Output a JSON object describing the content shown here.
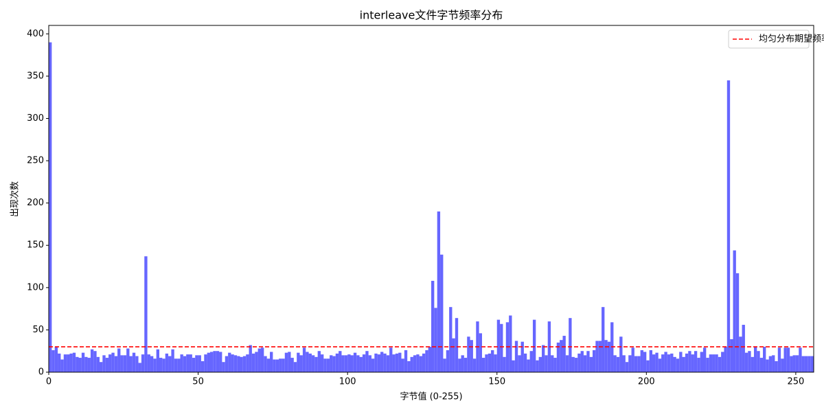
{
  "chart_data": {
    "type": "histogram",
    "title": "interleave文件字节频率分布",
    "xlabel": "字节值 (0-255)",
    "ylabel": "出现次数",
    "color": "#6666ff",
    "xlim": [
      0,
      256
    ],
    "ylim": [
      0,
      410
    ],
    "xticks": [
      0,
      50,
      100,
      150,
      200,
      250
    ],
    "yticks": [
      0,
      50,
      100,
      150,
      200,
      250,
      300,
      350,
      400
    ],
    "legend": "upper right",
    "reference_line": {
      "name": "均匀分布期望频率",
      "value": 30,
      "color": "#ff0000",
      "style": "dashed"
    },
    "bins": [
      0,
      1,
      2,
      3,
      4,
      5,
      6,
      7,
      8,
      9,
      10,
      11,
      12,
      13,
      14,
      15,
      16,
      17,
      18,
      19,
      20,
      21,
      22,
      23,
      24,
      25,
      26,
      27,
      28,
      29,
      30,
      31,
      32,
      33,
      34,
      35,
      36,
      37,
      38,
      39,
      40,
      41,
      42,
      43,
      44,
      45,
      46,
      47,
      48,
      49,
      50,
      51,
      52,
      53,
      54,
      55,
      56,
      57,
      58,
      59,
      60,
      61,
      62,
      63,
      64,
      65,
      66,
      67,
      68,
      69,
      70,
      71,
      72,
      73,
      74,
      75,
      76,
      77,
      78,
      79,
      80,
      81,
      82,
      83,
      84,
      85,
      86,
      87,
      88,
      89,
      90,
      91,
      92,
      93,
      94,
      95,
      96,
      97,
      98,
      99,
      100,
      101,
      102,
      103,
      104,
      105,
      106,
      107,
      108,
      109,
      110,
      111,
      112,
      113,
      114,
      115,
      116,
      117,
      118,
      119,
      120,
      121,
      122,
      123,
      124,
      125,
      126,
      127,
      128,
      129,
      130,
      131,
      132,
      133,
      134,
      135,
      136,
      137,
      138,
      139,
      140,
      141,
      142,
      143,
      144,
      145,
      146,
      147,
      148,
      149,
      150,
      151,
      152,
      153,
      154,
      155,
      156,
      157,
      158,
      159,
      160,
      161,
      162,
      163,
      164,
      165,
      166,
      167,
      168,
      169,
      170,
      171,
      172,
      173,
      174,
      175,
      176,
      177,
      178,
      179,
      180,
      181,
      182,
      183,
      184,
      185,
      186,
      187,
      188,
      189,
      190,
      191,
      192,
      193,
      194,
      195,
      196,
      197,
      198,
      199,
      200,
      201,
      202,
      203,
      204,
      205,
      206,
      207,
      208,
      209,
      210,
      211,
      212,
      213,
      214,
      215,
      216,
      217,
      218,
      219,
      220,
      221,
      222,
      223,
      224,
      225,
      226,
      227,
      228,
      229,
      230,
      231,
      232,
      233,
      234,
      235,
      236,
      237,
      238,
      239,
      240,
      241,
      242,
      243,
      244,
      245,
      246,
      247,
      248,
      249,
      250,
      251,
      252,
      253,
      254,
      255,
      256
    ],
    "values": [
      390,
      26,
      30,
      22,
      15,
      21,
      21,
      22,
      23,
      18,
      17,
      23,
      18,
      17,
      27,
      25,
      18,
      12,
      20,
      17,
      21,
      23,
      19,
      28,
      20,
      20,
      28,
      19,
      23,
      19,
      11,
      21,
      137,
      21,
      19,
      16,
      27,
      17,
      16,
      22,
      19,
      27,
      16,
      16,
      21,
      19,
      21,
      21,
      17,
      20,
      20,
      13,
      21,
      23,
      24,
      25,
      25,
      24,
      12,
      19,
      23,
      21,
      20,
      19,
      18,
      19,
      21,
      32,
      22,
      24,
      28,
      29,
      19,
      16,
      24,
      15,
      15,
      16,
      16,
      23,
      24,
      17,
      12,
      23,
      20,
      29,
      24,
      22,
      20,
      18,
      25,
      21,
      16,
      16,
      20,
      19,
      22,
      25,
      20,
      20,
      21,
      20,
      23,
      20,
      18,
      21,
      25,
      20,
      16,
      22,
      21,
      24,
      22,
      20,
      29,
      21,
      22,
      23,
      16,
      26,
      13,
      18,
      20,
      21,
      19,
      22,
      26,
      30,
      108,
      76,
      190,
      139,
      16,
      26,
      77,
      40,
      64,
      16,
      20,
      17,
      42,
      38,
      16,
      60,
      46,
      17,
      21,
      22,
      26,
      21,
      62,
      57,
      18,
      59,
      67,
      14,
      37,
      20,
      36,
      22,
      15,
      25,
      62,
      14,
      18,
      32,
      20,
      60,
      20,
      17,
      35,
      38,
      43,
      20,
      64,
      18,
      17,
      22,
      25,
      20,
      25,
      18,
      26,
      37,
      37,
      77,
      38,
      36,
      59,
      20,
      18,
      42,
      20,
      12,
      20,
      29,
      19,
      19,
      26,
      24,
      14,
      26,
      21,
      23,
      16,
      21,
      24,
      21,
      22,
      18,
      16,
      24,
      18,
      22,
      25,
      21,
      25,
      17,
      24,
      29,
      17,
      21,
      21,
      21,
      18,
      24,
      30,
      345,
      39,
      144,
      117,
      42,
      56,
      23,
      25,
      18,
      30,
      25,
      17,
      30,
      15,
      19,
      20,
      13,
      29,
      16,
      29,
      29,
      19,
      20,
      20,
      29,
      19,
      19,
      19,
      19
    ]
  }
}
